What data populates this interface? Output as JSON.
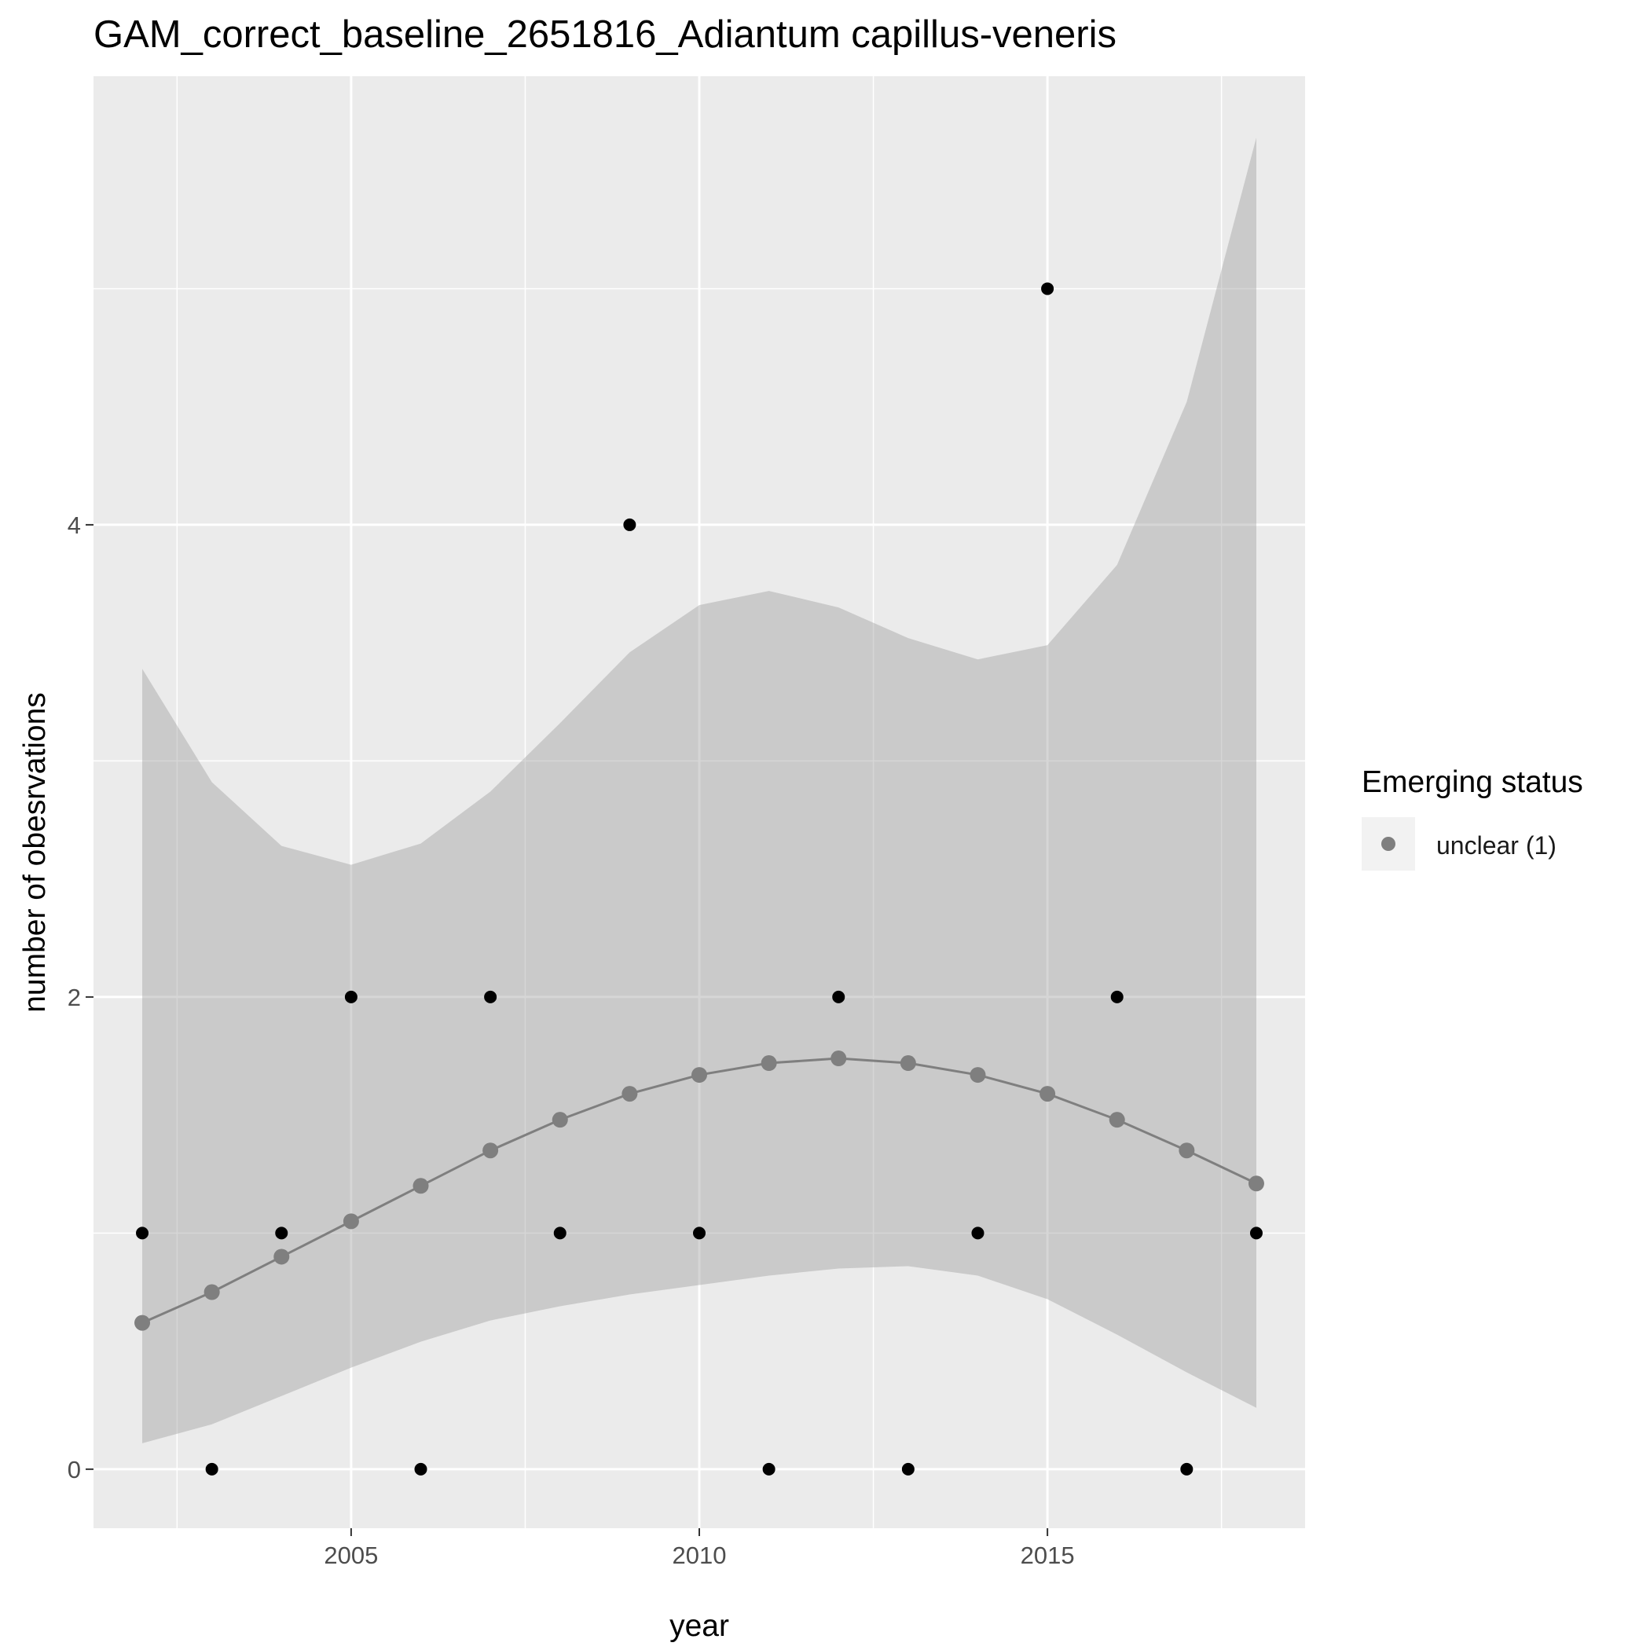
{
  "chart_data": {
    "type": "line",
    "title": "GAM_correct_baseline_2651816_Adiantum capillus-veneris",
    "xlabel": "year",
    "ylabel": "number of obesrvations",
    "xlim": [
      2001.3,
      2018.7
    ],
    "ylim": [
      -0.25,
      5.9
    ],
    "x_ticks": [
      2005,
      2010,
      2015
    ],
    "x_tick_labels": [
      "2005",
      "2010",
      "2015"
    ],
    "y_ticks": [
      0,
      2,
      4
    ],
    "y_tick_labels": [
      "0",
      "2",
      "4"
    ],
    "grid": true,
    "legend": {
      "title": "Emerging status",
      "position": "right",
      "entries": [
        {
          "label": "unclear (1)",
          "color": "#7f7f7f"
        }
      ]
    },
    "observed": {
      "color": "#000000",
      "x": [
        2002,
        2003,
        2004,
        2005,
        2006,
        2007,
        2008,
        2009,
        2010,
        2011,
        2012,
        2013,
        2014,
        2015,
        2016,
        2017,
        2018
      ],
      "y": [
        1,
        0,
        1,
        2,
        0,
        2,
        1,
        4,
        1,
        0,
        2,
        0,
        1,
        5,
        2,
        0,
        1
      ]
    },
    "series": [
      {
        "name": "unclear (1)",
        "color": "#7f7f7f",
        "x": [
          2002,
          2003,
          2004,
          2005,
          2006,
          2007,
          2008,
          2009,
          2010,
          2011,
          2012,
          2013,
          2014,
          2015,
          2016,
          2017,
          2018
        ],
        "y": [
          0.62,
          0.75,
          0.9,
          1.05,
          1.2,
          1.35,
          1.48,
          1.59,
          1.67,
          1.72,
          1.74,
          1.72,
          1.67,
          1.59,
          1.48,
          1.35,
          1.21
        ],
        "ci_lower": [
          0.11,
          0.19,
          0.31,
          0.43,
          0.54,
          0.63,
          0.69,
          0.74,
          0.78,
          0.82,
          0.85,
          0.86,
          0.82,
          0.72,
          0.57,
          0.41,
          0.26
        ],
        "ci_upper": [
          3.39,
          2.91,
          2.64,
          2.56,
          2.65,
          2.87,
          3.16,
          3.46,
          3.66,
          3.72,
          3.65,
          3.52,
          3.43,
          3.49,
          3.83,
          4.52,
          5.64
        ]
      }
    ],
    "colors": {
      "panel_bg": "#ebebeb",
      "grid": "#ffffff",
      "ribbon": "#999999",
      "legend_key_bg": "#f2f2f2"
    }
  }
}
